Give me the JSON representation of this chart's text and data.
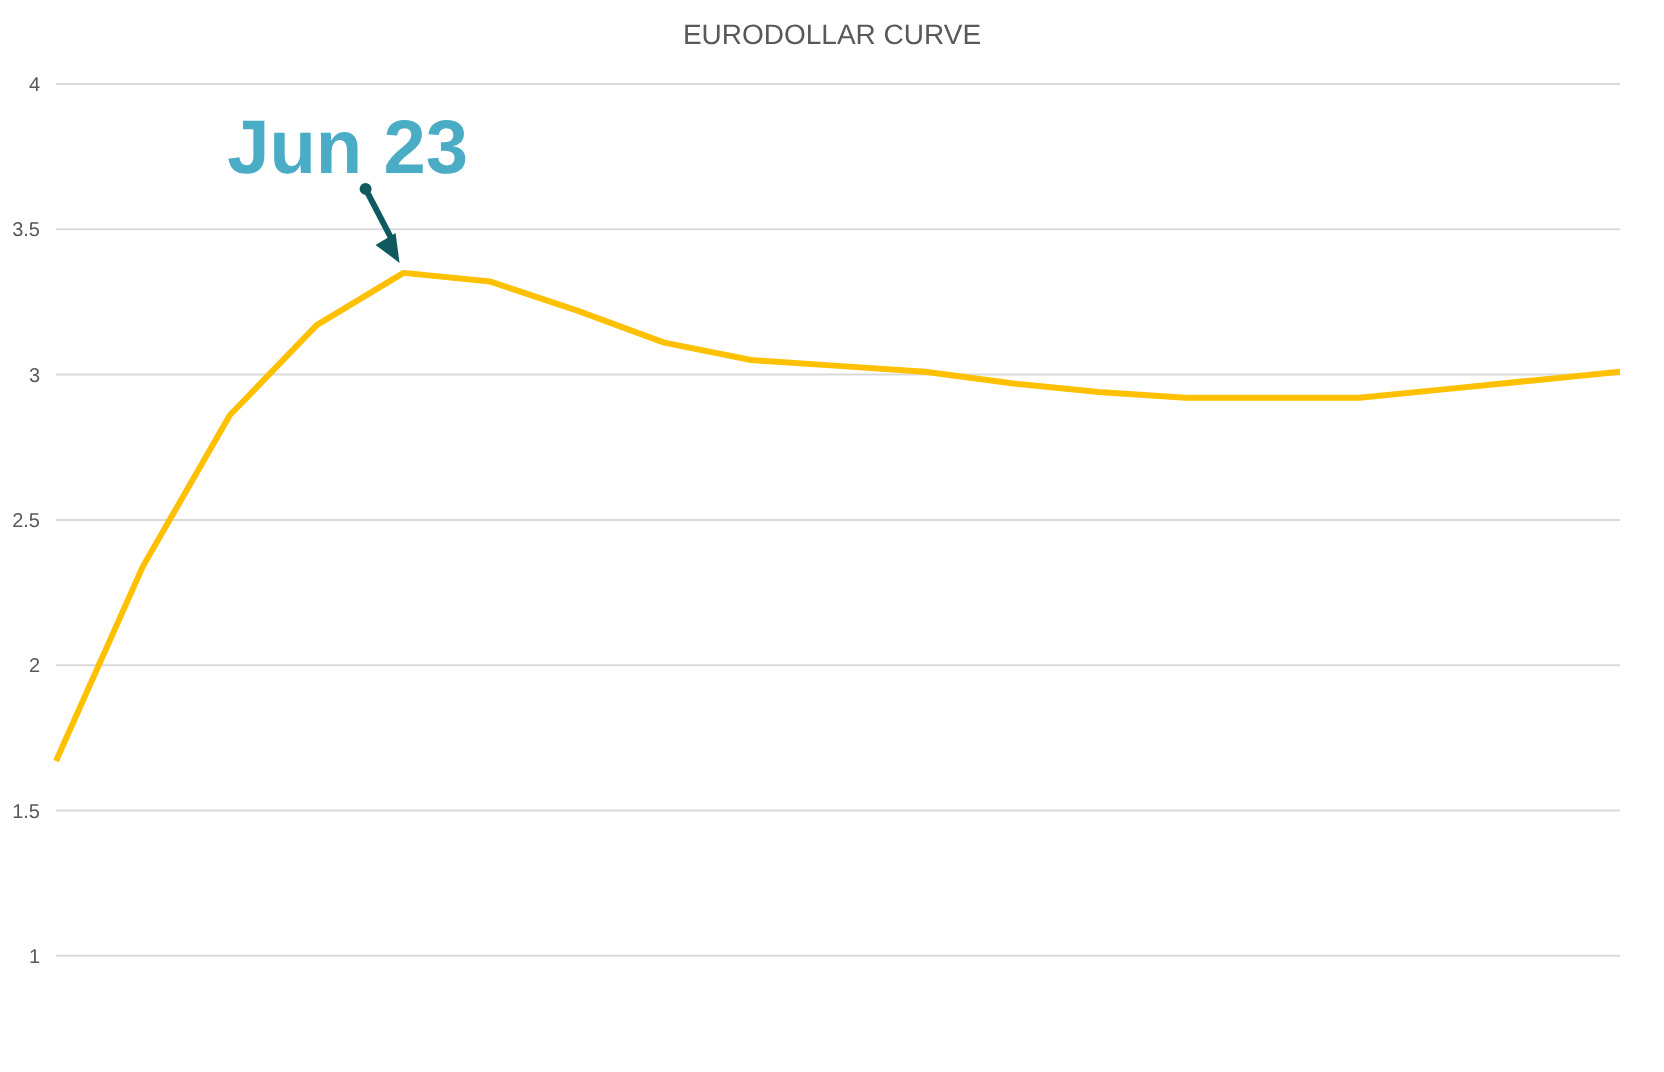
{
  "chart_data": {
    "type": "line",
    "title": "EURODOLLAR CURVE",
    "categories": [
      null,
      null,
      null,
      null,
      null,
      null,
      null,
      null,
      null,
      null,
      null,
      null,
      null,
      null,
      null,
      null,
      null,
      null,
      null
    ],
    "series": [
      {
        "color": "#ffc000",
        "values": [
          1.67,
          2.34,
          2.86,
          3.17,
          3.35,
          3.32,
          3.22,
          3.11,
          3.05,
          3.03,
          3.01,
          2.97,
          2.94,
          2.92,
          2.92,
          2.92,
          2.95,
          2.98,
          3.01
        ]
      }
    ],
    "ylim": [
      0.6,
      4
    ],
    "yticks": [
      1,
      1.5,
      2,
      2.5,
      3,
      3.5,
      4
    ],
    "grid": "y",
    "marker": "none",
    "line_style": "solid",
    "annotations": [
      "Jun 23"
    ]
  }
}
